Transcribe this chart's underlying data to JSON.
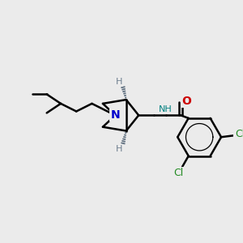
{
  "background_color": "#ebebeb",
  "bond_color": "#000000",
  "bond_width": 1.8,
  "N_color": "#0000cc",
  "NH_color": "#008080",
  "O_color": "#cc0000",
  "Cl_color": "#228B22",
  "H_color": "#708090",
  "figsize": [
    3.0,
    3.0
  ],
  "dpi": 100,
  "xlim": [
    0,
    300
  ],
  "ylim": [
    0,
    300
  ]
}
